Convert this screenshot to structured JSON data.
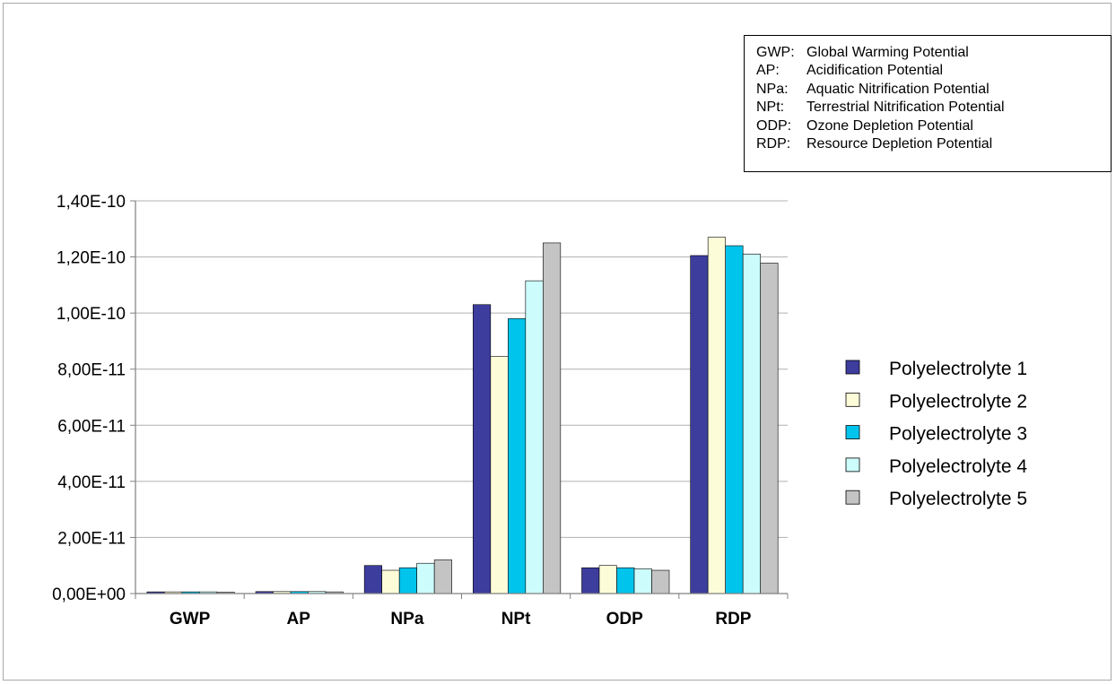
{
  "abbreviations": [
    {
      "code": "GWP:",
      "desc": "Global Warming Potential"
    },
    {
      "code": "AP:",
      "desc": "Acidification Potential"
    },
    {
      "code": "NPa:",
      "desc": "Aquatic Nitrification Potential"
    },
    {
      "code": "NPt:",
      "desc": "Terrestrial Nitrification Potential"
    },
    {
      "code": "ODP:",
      "desc": "Ozone Depletion Potential"
    },
    {
      "code": "RDP:",
      "desc": "Resource Depletion Potential"
    }
  ],
  "chart_data": {
    "type": "bar",
    "title": "",
    "xlabel": "",
    "ylabel": "",
    "categories": [
      "GWP",
      "AP",
      "NPa",
      "NPt",
      "ODP",
      "RDP"
    ],
    "ylim": [
      0,
      1.4e-10
    ],
    "yticks": [
      0,
      2e-11,
      4e-11,
      6e-11,
      8e-11,
      1e-10,
      1.2e-10,
      1.4e-10
    ],
    "ytick_labels": [
      "0,00E+00",
      "2,00E-11",
      "4,00E-11",
      "6,00E-11",
      "8,00E-11",
      "1,00E-10",
      "1,20E-10",
      "1,40E-10"
    ],
    "grid": true,
    "legend_position": "right",
    "series": [
      {
        "name": "Polyelectrolyte 1",
        "color": "#3d3d9e",
        "values": [
          6e-13,
          7e-13,
          1e-11,
          1.03e-10,
          9.2e-12,
          1.205e-10
        ]
      },
      {
        "name": "Polyelectrolyte 2",
        "color": "#fcfcd8",
        "values": [
          6e-13,
          7e-13,
          8.3e-12,
          8.45e-11,
          1e-11,
          1.27e-10
        ]
      },
      {
        "name": "Polyelectrolyte 3",
        "color": "#00c4ec",
        "values": [
          6e-13,
          7e-13,
          9.2e-12,
          9.8e-11,
          9.2e-12,
          1.24e-10
        ]
      },
      {
        "name": "Polyelectrolyte 4",
        "color": "#ccfcfc",
        "values": [
          6e-13,
          7e-13,
          1.08e-11,
          1.115e-10,
          8.8e-12,
          1.21e-10
        ]
      },
      {
        "name": "Polyelectrolyte 5",
        "color": "#c4c4c4",
        "values": [
          5e-13,
          6e-13,
          1.2e-11,
          1.25e-10,
          8.3e-12,
          1.178e-10
        ]
      }
    ]
  }
}
